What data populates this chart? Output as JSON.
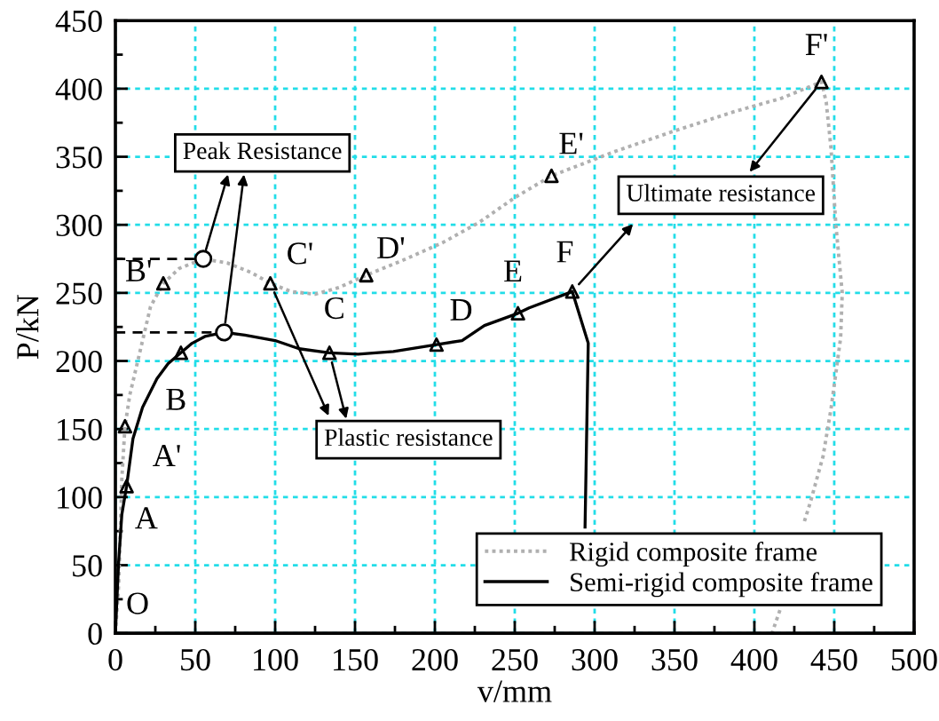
{
  "chart_data": {
    "type": "line",
    "xlabel": "v/mm",
    "ylabel": "P/kN",
    "xlim": [
      0,
      500
    ],
    "xticks": [
      0,
      50,
      100,
      150,
      200,
      250,
      300,
      350,
      400,
      450,
      500
    ],
    "ylim": [
      0,
      450
    ],
    "yticks": [
      0,
      50,
      100,
      150,
      200,
      250,
      300,
      350,
      400,
      450
    ],
    "grid": true,
    "legend": "bottom right",
    "series": [
      {
        "name": "Rigid composite frame",
        "color": "#b0b0b0",
        "line_style": "dotted",
        "marker": "none",
        "x": [
          0,
          2,
          3,
          4,
          6,
          9,
          13,
          17,
          22,
          30,
          40,
          55,
          70,
          85,
          97,
          110,
          125,
          140,
          157,
          180,
          205,
          228,
          250,
          273,
          313,
          350,
          387,
          417,
          442,
          445,
          448,
          451,
          455,
          454,
          448,
          443,
          435,
          431,
          425,
          416,
          411
        ],
        "values": [
          0,
          35,
          70,
          113,
          152,
          175,
          195,
          215,
          240,
          257,
          268,
          275,
          272,
          265,
          257,
          251,
          249,
          254,
          263,
          274,
          287,
          302,
          320,
          336,
          354,
          369,
          383,
          393,
          405,
          390,
          356,
          300,
          250,
          217,
          165,
          130,
          96,
          81,
          null,
          17,
          0
        ]
      },
      {
        "name": "Semi-rigid composite frame",
        "color": "#000000",
        "line_style": "solid",
        "marker": "none",
        "x": [
          0,
          2,
          4,
          7,
          11,
          17,
          26,
          33,
          41,
          48,
          56,
          68,
          81,
          100,
          115,
          134,
          152,
          174,
          201,
          217,
          231,
          252,
          259,
          286,
          296,
          294
        ],
        "values": [
          0,
          52,
          87,
          108,
          143,
          166,
          187,
          198,
          206,
          213,
          218,
          221,
          219,
          215,
          209,
          206,
          205,
          207,
          212,
          215,
          226,
          235,
          239,
          251,
          213,
          78
        ]
      },
      {
        "color": "#000000",
        "line_style": "dashed",
        "marker": "none",
        "x": [
          0,
          55
        ],
        "values": [
          275,
          275
        ]
      },
      {
        "color": "#000000",
        "line_style": "dashed",
        "marker": "none",
        "x": [
          0,
          68
        ],
        "values": [
          221,
          221
        ]
      },
      {
        "type": "scatter",
        "color": "#000000",
        "marker": "triangle",
        "x": [
          6,
          30,
          97,
          157,
          273,
          442
        ],
        "values": [
          152,
          257,
          257,
          263,
          336,
          405
        ]
      },
      {
        "type": "scatter",
        "color": "#000000",
        "marker": "triangle",
        "x": [
          7,
          41,
          134,
          201,
          252,
          286
        ],
        "values": [
          108,
          206,
          206,
          212,
          235,
          251
        ]
      },
      {
        "type": "scatter",
        "color": "#000000",
        "marker": "circle",
        "x": [
          55,
          68
        ],
        "values": [
          275,
          221
        ]
      }
    ],
    "annotations": [
      {
        "text": "O",
        "x": 0,
        "y": 0
      },
      {
        "text": "A",
        "x": 7,
        "y": 108
      },
      {
        "text": "A'",
        "x": 6,
        "y": 152
      },
      {
        "text": "B",
        "x": 41,
        "y": 206
      },
      {
        "text": "B'",
        "x": 30,
        "y": 257
      },
      {
        "text": "C",
        "x": 134,
        "y": 206
      },
      {
        "text": "C'",
        "x": 97,
        "y": 257
      },
      {
        "text": "D",
        "x": 201,
        "y": 212
      },
      {
        "text": "D'",
        "x": 157,
        "y": 263
      },
      {
        "text": "E",
        "x": 252,
        "y": 235
      },
      {
        "text": "E'",
        "x": 273,
        "y": 336
      },
      {
        "text": "F",
        "x": 286,
        "y": 251
      },
      {
        "text": "F'",
        "x": 442,
        "y": 405
      },
      "Peak Resistance",
      "Plastic resistance",
      "Ultimate resistance"
    ]
  }
}
